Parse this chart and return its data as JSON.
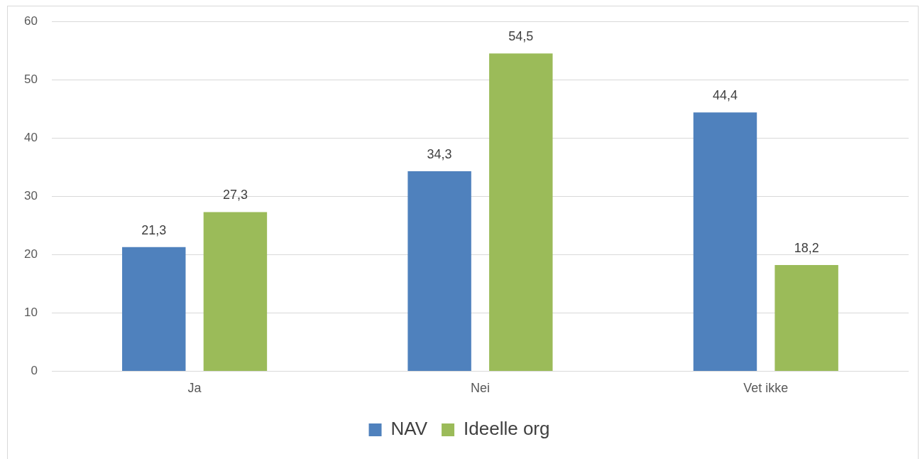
{
  "chart_data": {
    "type": "bar",
    "categories": [
      "Ja",
      "Nei",
      "Vet ikke"
    ],
    "series": [
      {
        "name": "NAV",
        "color": "#4f81bd",
        "values": [
          21.3,
          34.3,
          44.4
        ],
        "value_labels": [
          "21,3",
          "34,3",
          "44,4"
        ]
      },
      {
        "name": "Ideelle org",
        "color": "#9bbb59",
        "values": [
          27.3,
          54.5,
          18.2
        ],
        "value_labels": [
          "27,3",
          "54,5",
          "18,2"
        ]
      }
    ],
    "ylim": [
      0,
      60
    ],
    "yticks": [
      0,
      10,
      20,
      30,
      40,
      50,
      60
    ],
    "grid": "y",
    "legend": "bottom"
  }
}
